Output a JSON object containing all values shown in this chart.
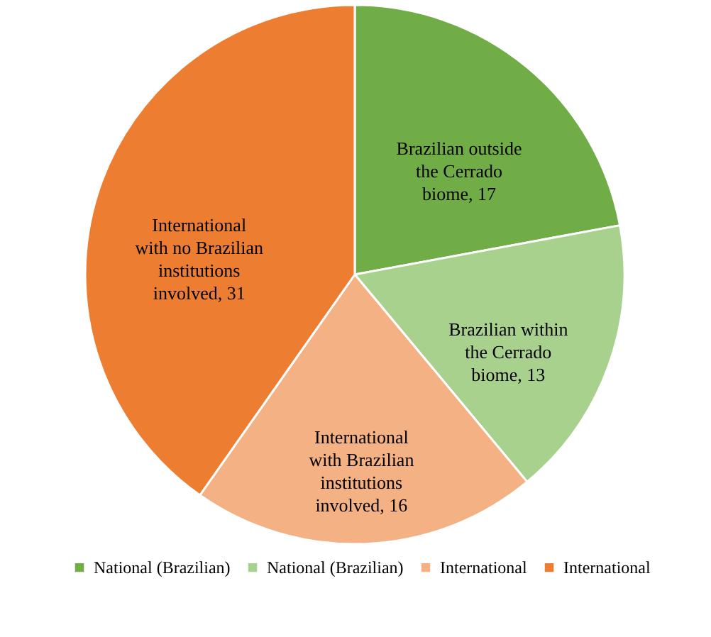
{
  "chart_data": {
    "type": "pie",
    "categories": [
      "National (Brazilian)",
      "National (Brazilian)",
      "International",
      "International"
    ],
    "values": [
      17,
      13,
      16,
      31
    ],
    "colors": [
      "#70ad47",
      "#a9d18e",
      "#f4b183",
      "#ed7d31"
    ],
    "value_labels": [
      "Brazilian outside the Cerrado biome, 17",
      "Brazilian within the Cerrado biome, 13",
      "International with Brazilian institutions involved, 16",
      "International with no Brazilian institutions involved, 31"
    ],
    "legend": "bottom"
  }
}
